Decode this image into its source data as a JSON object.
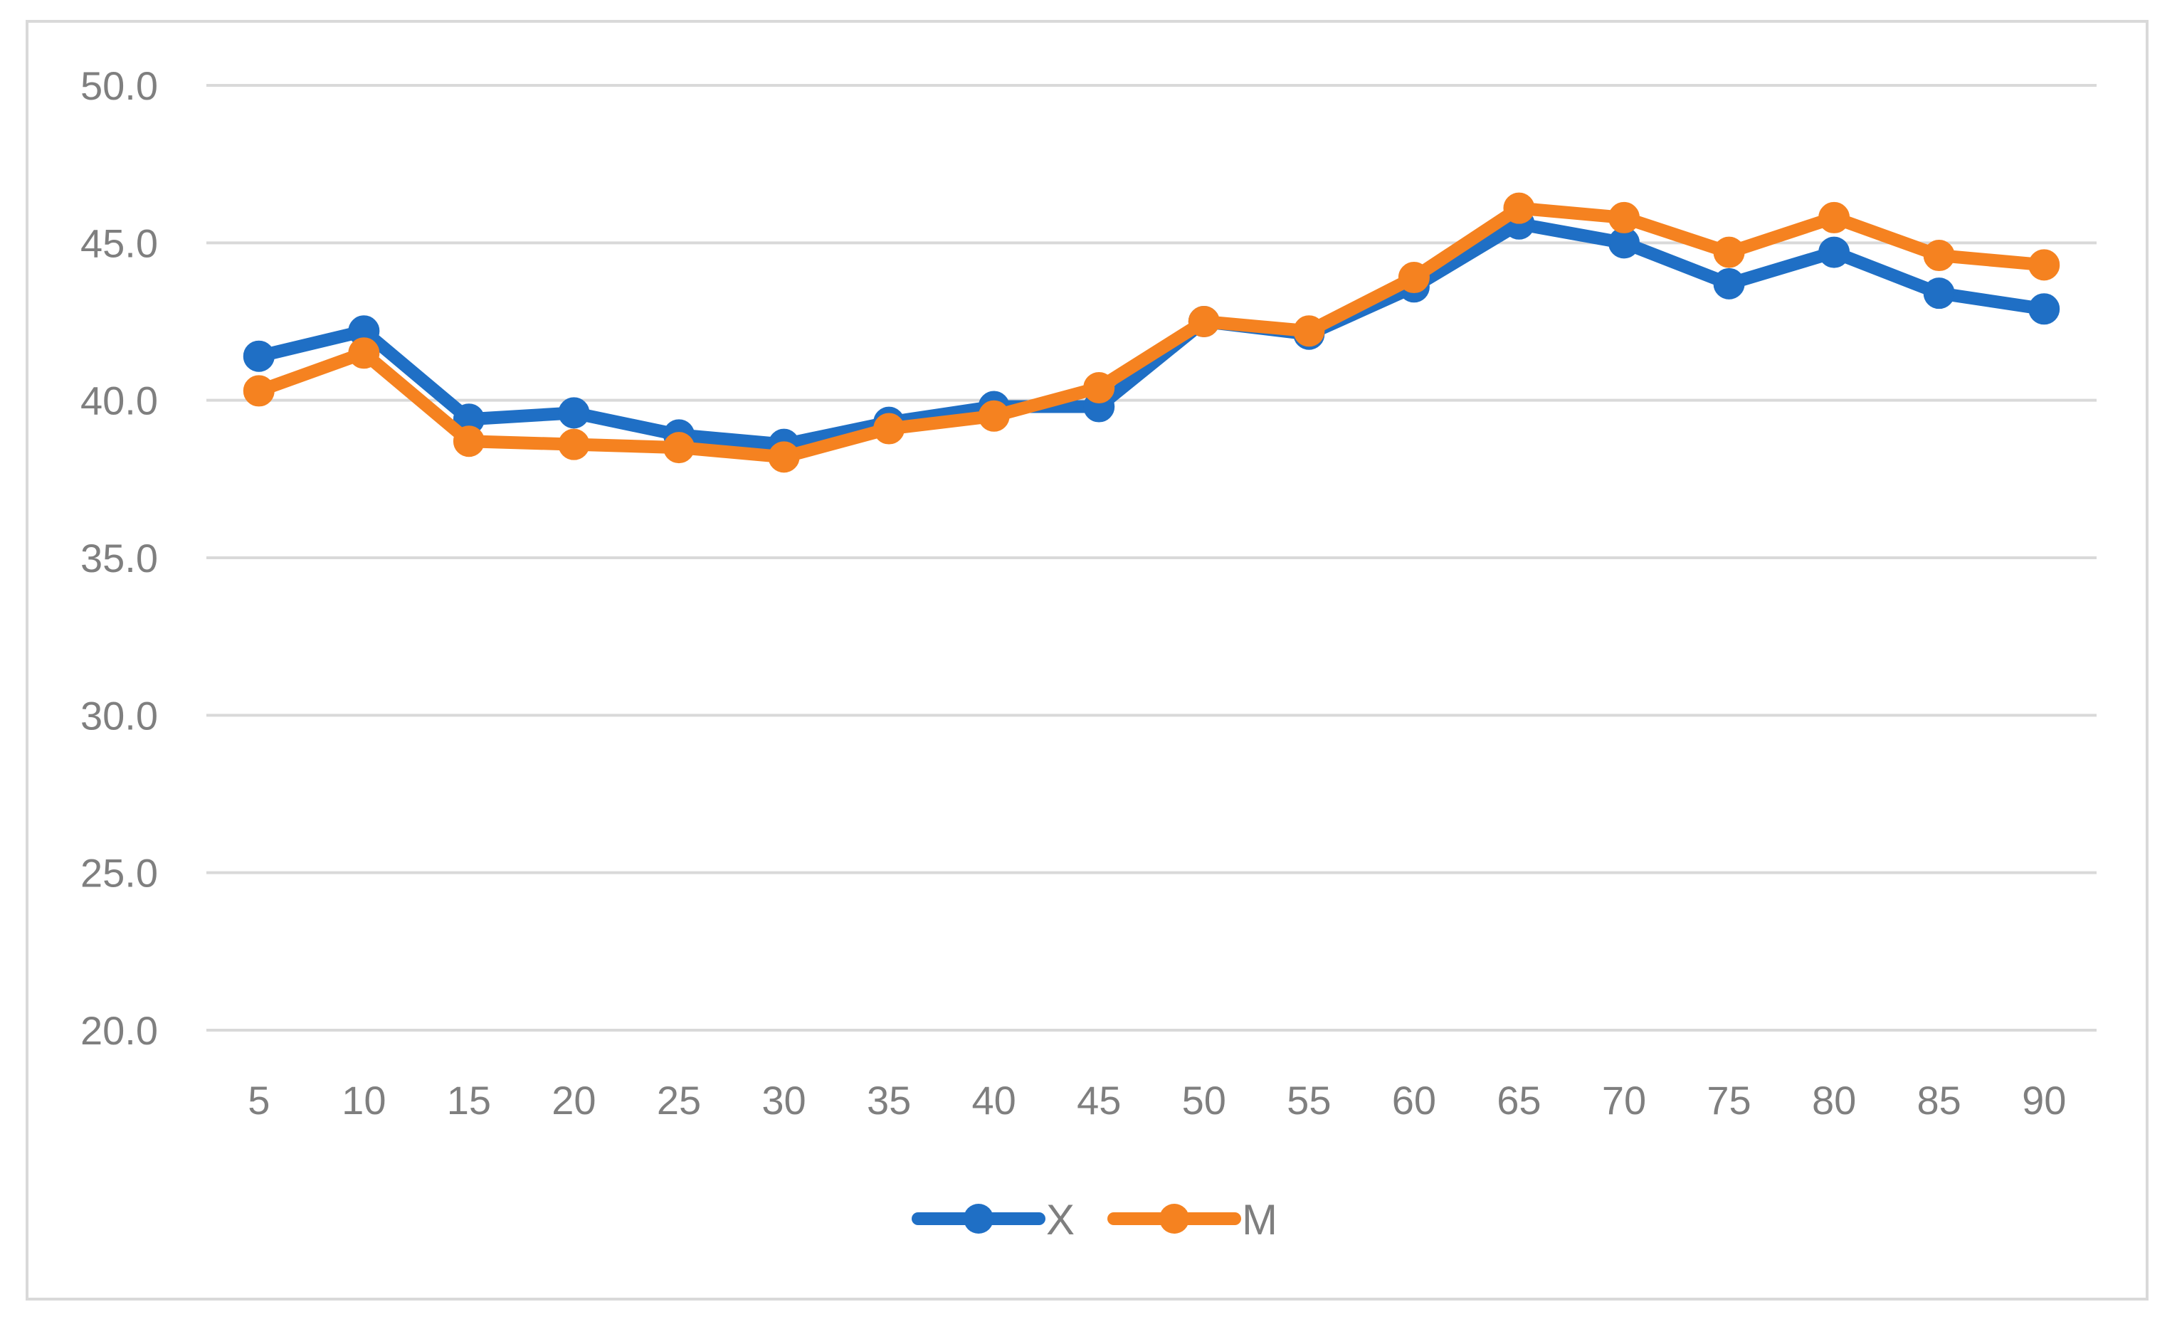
{
  "chart_data": {
    "type": "line",
    "title": "",
    "xlabel": "",
    "ylabel": "",
    "categories": [
      "5",
      "10",
      "15",
      "20",
      "25",
      "30",
      "35",
      "40",
      "45",
      "50",
      "55",
      "60",
      "65",
      "70",
      "75",
      "80",
      "85",
      "90"
    ],
    "ylim": [
      20,
      50
    ],
    "yticks": [
      "20.0",
      "25.0",
      "30.0",
      "35.0",
      "40.0",
      "45.0",
      "50.0"
    ],
    "grid": "horizontal",
    "legend_position": "bottom",
    "series": [
      {
        "name": "X",
        "color": "#1f6fc5",
        "values": [
          41.4,
          42.2,
          39.4,
          39.6,
          38.9,
          38.6,
          39.3,
          39.8,
          39.8,
          42.5,
          42.1,
          43.6,
          45.6,
          45.0,
          43.7,
          44.7,
          43.4,
          42.9
        ]
      },
      {
        "name": "M",
        "color": "#f58220",
        "values": [
          40.3,
          41.5,
          38.7,
          38.6,
          38.5,
          38.2,
          39.1,
          39.5,
          40.4,
          42.5,
          42.2,
          43.9,
          46.1,
          45.8,
          44.7,
          45.8,
          44.6,
          44.3
        ]
      }
    ]
  }
}
